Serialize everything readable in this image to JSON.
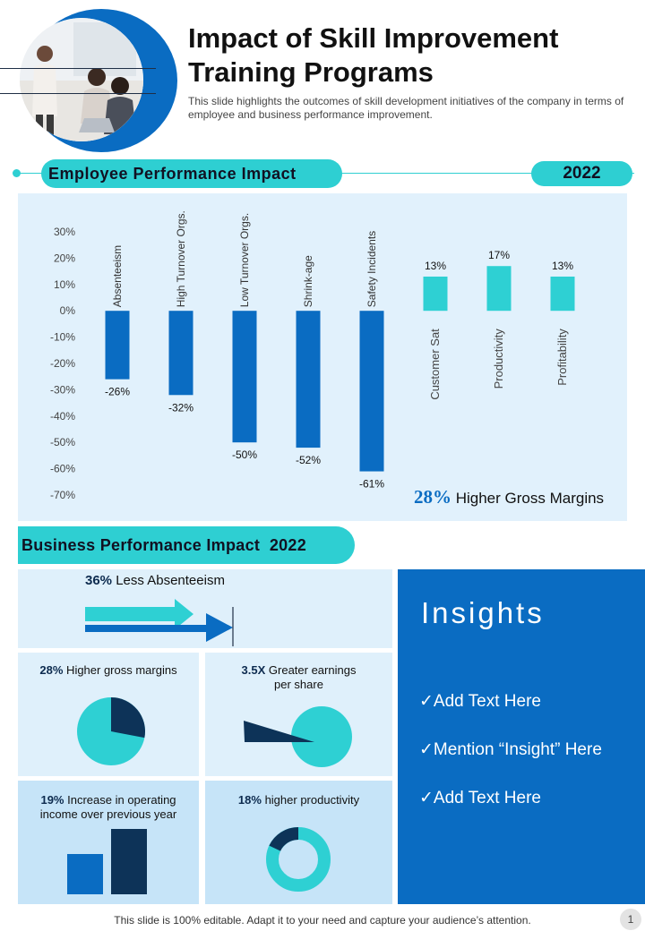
{
  "header": {
    "title": "Impact of Skill Improvement Training Programs",
    "subtitle": "This slide highlights the outcomes of skill development initiatives of the company in terms of employee and business performance improvement."
  },
  "employee_section": {
    "heading": "Employee Performance Impact",
    "year": "2022",
    "gross_value": "28%",
    "gross_text": " Higher Gross Margins"
  },
  "chart_data": {
    "type": "bar",
    "categories": [
      "Absenteeism",
      "High Turnover  Orgs.",
      "Low Turnover  Orgs.",
      "Shrink-age",
      "Safety Incidents",
      "Customer Sat",
      "Productivity",
      "Profitability"
    ],
    "values": [
      -26,
      -32,
      -50,
      -52,
      -61,
      13,
      17,
      13
    ],
    "data_labels": [
      "-26%",
      "-32%",
      "-50%",
      "-52%",
      "-61%",
      "13%",
      "17%",
      "13%"
    ],
    "ylim": [
      -70,
      30
    ],
    "yticks": [
      30,
      20,
      10,
      0,
      -10,
      -20,
      -30,
      -40,
      -50,
      -60,
      -70
    ],
    "ytick_labels": [
      "30%",
      "20%",
      "10%",
      "0%",
      "-10%",
      "-20%",
      "-30%",
      "-40%",
      "-50%",
      "-60%",
      "-70%"
    ],
    "grid": false,
    "colors": {
      "negative": "#0a6cc2",
      "positive": "#2ed0d3"
    },
    "title": "",
    "xlabel": "",
    "ylabel": ""
  },
  "business_section": {
    "heading": "Business Performance Impact",
    "year": "2022",
    "absenteeism": {
      "value": "36%",
      "text": " Less Absenteeism"
    },
    "gross": {
      "value": "28%",
      "text": " Higher gross margins",
      "share": 0.28
    },
    "earnings": {
      "value": "3.5X",
      "text": " Greater earnings per share"
    },
    "income": {
      "value": "19%",
      "text": " Increase in operating income over previous year"
    },
    "productivity": {
      "value": "18%",
      "text": " higher productivity",
      "share": 0.18
    }
  },
  "insights": {
    "title": "Insights",
    "items": [
      "✓Add Text Here",
      "✓Mention “Insight” Here",
      "✓Add Text Here"
    ]
  },
  "footer": {
    "text": "This slide is 100% editable. Adapt it to your need and capture your audience’s attention.",
    "page": "1"
  }
}
